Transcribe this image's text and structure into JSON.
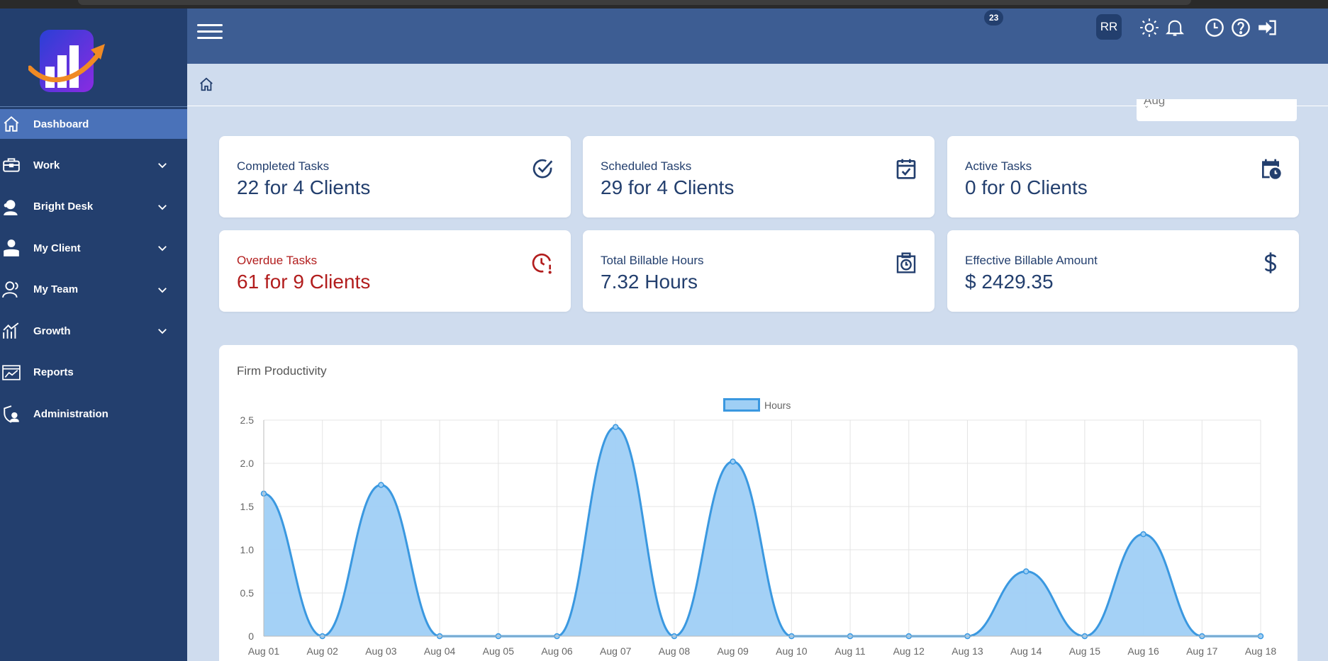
{
  "sidebar": {
    "items": [
      {
        "label": "Dashboard",
        "icon": "home-icon"
      },
      {
        "label": "Work",
        "icon": "briefcase-icon"
      },
      {
        "label": "Bright Desk",
        "icon": "support-agent-icon"
      },
      {
        "label": "My Client",
        "icon": "client-icon"
      },
      {
        "label": "My Team",
        "icon": "team-icon"
      },
      {
        "label": "Growth",
        "icon": "growth-chart-icon"
      },
      {
        "label": "Reports",
        "icon": "report-icon"
      },
      {
        "label": "Administration",
        "icon": "admin-icon"
      }
    ]
  },
  "header": {
    "notification_count": "23",
    "avatar_initials": "RR"
  },
  "filter": {
    "month": "Aug"
  },
  "cards": [
    {
      "label": "Completed Tasks",
      "value": "22 for 4 Clients",
      "icon": "check-circle-icon"
    },
    {
      "label": "Scheduled Tasks",
      "value": "29 for 4 Clients",
      "icon": "calendar-check-icon"
    },
    {
      "label": "Active Tasks",
      "value": "0 for 0 Clients",
      "icon": "calendar-clock-icon"
    },
    {
      "label": "Overdue Tasks",
      "value": "61 for 9 Clients",
      "icon": "clock-alert-icon"
    },
    {
      "label": "Total Billable Hours",
      "value": "7.32 Hours",
      "icon": "timer-box-icon"
    },
    {
      "label": "Effective Billable Amount",
      "value": "$ 2429.35",
      "icon": "dollar-icon"
    }
  ],
  "colors": {
    "sidebar": "#233f6e",
    "active": "#4a72b9",
    "overdue": "#b21d1d",
    "series_line": "#3a98e0",
    "series_fill": "#9fcff5"
  },
  "chart_data": {
    "type": "area",
    "title": "Firm Productivity",
    "xlabel": "",
    "ylabel": "",
    "ylim": [
      0,
      2.5
    ],
    "yticks": [
      "0",
      "0.5",
      "1.0",
      "1.5",
      "2.0",
      "2.5"
    ],
    "grid": true,
    "legend": "top-center",
    "categories": [
      "Aug 01",
      "Aug 02",
      "Aug 03",
      "Aug 04",
      "Aug 05",
      "Aug 06",
      "Aug 07",
      "Aug 08",
      "Aug 09",
      "Aug 10",
      "Aug 11",
      "Aug 12",
      "Aug 13",
      "Aug 14",
      "Aug 15",
      "Aug 16",
      "Aug 17",
      "Aug 18"
    ],
    "series": [
      {
        "name": "Hours",
        "values": [
          1.65,
          0,
          1.75,
          0,
          0,
          0,
          2.42,
          0,
          2.02,
          0,
          0,
          0,
          0,
          0.75,
          0,
          1.18,
          0,
          0
        ]
      }
    ]
  }
}
